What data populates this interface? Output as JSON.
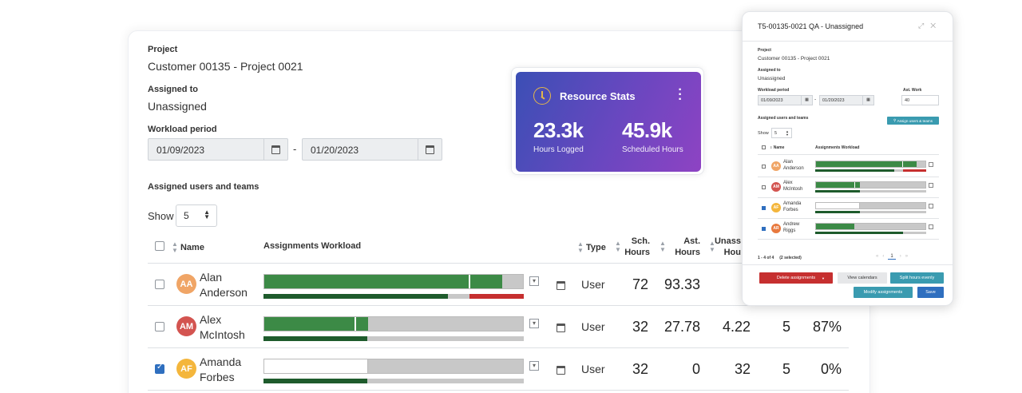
{
  "project": {
    "label": "Project",
    "value": "Customer 00135 - Project 0021"
  },
  "assigned_to": {
    "label": "Assigned to",
    "value": "Unassigned"
  },
  "workload": {
    "label": "Workload period",
    "start": "01/09/2023",
    "end": "01/20/2023",
    "separator": "-"
  },
  "assigned_section": {
    "label": "Assigned users and teams"
  },
  "show": {
    "label": "Show",
    "value": "5"
  },
  "table": {
    "headers": {
      "name": "Name",
      "workload": "Assignments Workload",
      "type": "Type",
      "sch": "Sch.",
      "sch2": "Hours",
      "ast": "Ast.",
      "ast2": "Hours",
      "unas": "Unass",
      "unas2": "Hou"
    },
    "rows": [
      {
        "initials": "AA",
        "first": "Alan",
        "last": "Anderson",
        "color": "#f0a566",
        "checked": false,
        "type": "User",
        "sch": "72",
        "ast": "93.33",
        "unas": "",
        "c5": "",
        "pct": "",
        "bar_top": [
          0.79,
          0.92
        ],
        "bar_bottom": [
          0.71,
          0.79
        ]
      },
      {
        "initials": "AM",
        "first": "Alex",
        "last": "McIntosh",
        "color": "#d35450",
        "checked": false,
        "type": "User",
        "sch": "32",
        "ast": "27.78",
        "unas": "4.22",
        "c5": "5",
        "pct": "87%",
        "bar_top": [
          0.35,
          0.4
        ],
        "bar_bottom": [
          0.4
        ]
      },
      {
        "initials": "AF",
        "first": "Amanda",
        "last": "Forbes",
        "color": "#f4b63c",
        "checked": true,
        "type": "User",
        "sch": "32",
        "ast": "0",
        "unas": "32",
        "c5": "5",
        "pct": "0%",
        "bar_top": [
          0.0,
          0.4
        ],
        "bar_bottom": [
          0.4
        ]
      }
    ]
  },
  "stats": {
    "title": "Resource Stats",
    "logged_value": "23.3k",
    "logged_label": "Hours Logged",
    "scheduled_value": "45.9k",
    "scheduled_label": "Scheduled Hours"
  },
  "modal": {
    "title": "T5-00135-0021 QA - Unassigned",
    "project_label": "Project",
    "project_value": "Customer 00135 - Project 0021",
    "assigned_label": "Assigned to",
    "assigned_value": "Unassigned",
    "workload_label": "Workload period",
    "start": "01/09/2023",
    "end": "01/20/2023",
    "ast_work_label": "Ast. Work",
    "ast_work_value": "40",
    "assigned_section": "Assigned users and teams",
    "assign_button": "Assign users & teams",
    "show_label": "Show",
    "show_value": "5",
    "col_name": "Name",
    "col_workload": "Assignments Workload",
    "rows": [
      {
        "initials": "AA",
        "first": "Alan",
        "last": "Anderson",
        "color": "#f0a566",
        "checked": false
      },
      {
        "initials": "AM",
        "first": "Alex",
        "last": "McIntosh",
        "color": "#d35450",
        "checked": false
      },
      {
        "initials": "AF",
        "first": "Amanda",
        "last": "Forbes",
        "color": "#f4b63c",
        "checked": true
      },
      {
        "initials": "AR",
        "first": "Andrew",
        "last": "Riggs",
        "color": "#e8793e",
        "checked": true
      }
    ],
    "paging_info": "1 - 4 of 4",
    "selected_info": "(2 selected)",
    "page": "1",
    "delete_button": "Delete assignments",
    "view_calendars": "View calendars",
    "split_hours": "Split hours evenly",
    "modify_button": "Modify assignments",
    "save_button": "Save"
  },
  "colors": {
    "green": "#3c8a46",
    "dark_green": "#1e5b2c",
    "red": "#c62f2f",
    "gray": "#c8c8c8",
    "teal": "#3a9bb0",
    "blue": "#2f6fbf"
  }
}
